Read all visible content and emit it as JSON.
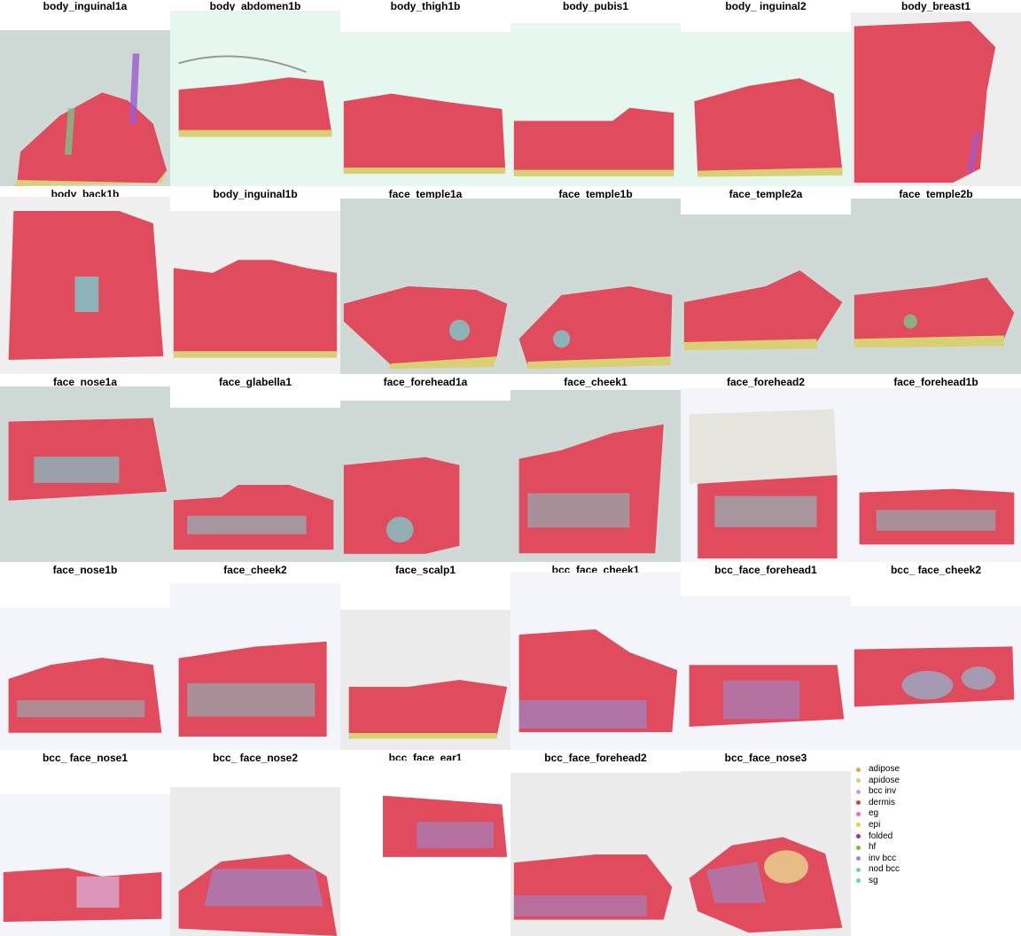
{
  "panels": [
    {
      "title": "body_inguinal1a",
      "bg": "#cfd9d6"
    },
    {
      "title": "body_abdomen1b",
      "bg": "#e6f7ef"
    },
    {
      "title": "body_thigh1b",
      "bg": "#e6f7ef"
    },
    {
      "title": "body_pubis1",
      "bg": "#e6f7ef"
    },
    {
      "title": "body_ inguinal2",
      "bg": "#e6f7ef"
    },
    {
      "title": "body_breast1",
      "bg": "#eeeeee"
    },
    {
      "title": "body_back1b",
      "bg": "#f0f0f0"
    },
    {
      "title": "body_inguinal1b",
      "bg": "#f0f0f0"
    },
    {
      "title": "face_temple1a",
      "bg": "#cfd9d6"
    },
    {
      "title": "face_temple1b",
      "bg": "#cfd9d6"
    },
    {
      "title": "face_temple2a",
      "bg": "#cfd9d6"
    },
    {
      "title": "face_temple2b",
      "bg": "#cfd9d6"
    },
    {
      "title": "face_nose1a",
      "bg": "#cfd9d6"
    },
    {
      "title": "face_glabella1",
      "bg": "#cfd9d6"
    },
    {
      "title": "face_forehead1a",
      "bg": "#cfd9d6"
    },
    {
      "title": "face_cheek1",
      "bg": "#cfd9d6"
    },
    {
      "title": "face_forehead2",
      "bg": "#f4f4fb"
    },
    {
      "title": "face_forehead1b",
      "bg": "#f4f4fb"
    },
    {
      "title": "face_nose1b",
      "bg": "#f4f4fb"
    },
    {
      "title": "face_cheek2",
      "bg": "#f4f4fb"
    },
    {
      "title": "face_scalp1",
      "bg": "#ececec"
    },
    {
      "title": "bcc_face_cheek1",
      "bg": "#f4f4fb"
    },
    {
      "title": "bcc_face_forehead1",
      "bg": "#f4f4fb"
    },
    {
      "title": "bcc_ face_cheek2",
      "bg": "#f4f4fb"
    },
    {
      "title": "bcc_ face_nose1",
      "bg": "#f4f4fb"
    },
    {
      "title": "bcc_ face_nose2",
      "bg": "#ececec"
    },
    {
      "title": "bcc_face_ear1",
      "bg": "#ffffff"
    },
    {
      "title": "bcc_face_forehead2",
      "bg": "#ececec"
    },
    {
      "title": "bcc_face_nose3",
      "bg": "#ececec"
    }
  ],
  "legend": [
    {
      "label": "adipose",
      "color": "#e8a53b"
    },
    {
      "label": "apidose",
      "color": "#d9c98a"
    },
    {
      "label": "bcc inv",
      "color": "#b8a8e0"
    },
    {
      "label": "dermis",
      "color": "#e2394f"
    },
    {
      "label": "eg",
      "color": "#e86ad0"
    },
    {
      "label": "epi",
      "color": "#d6d84a"
    },
    {
      "label": "folded",
      "color": "#8a2be2"
    },
    {
      "label": "hf",
      "color": "#6fc04a"
    },
    {
      "label": "inv bcc",
      "color": "#8f8fd8"
    },
    {
      "label": "nod bcc",
      "color": "#7ec6c9"
    },
    {
      "label": "sg",
      "color": "#66d1b8"
    }
  ]
}
